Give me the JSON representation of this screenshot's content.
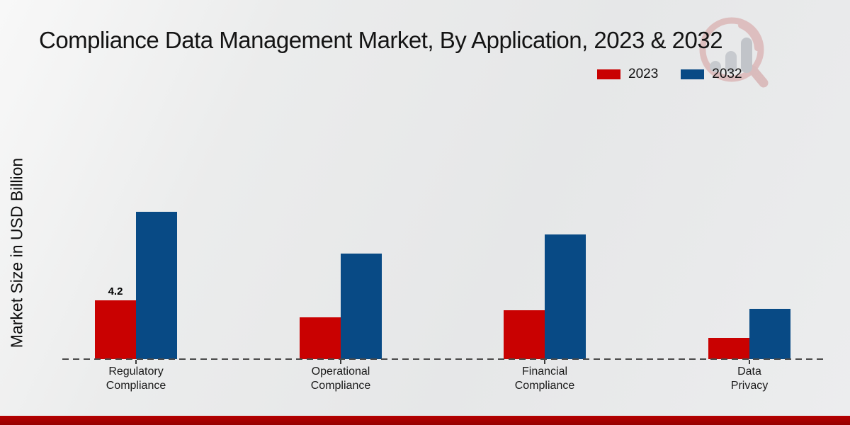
{
  "title": "Compliance Data Management Market, By Application, 2023 & 2032",
  "y_axis_label": "Market Size in USD Billion",
  "legend": {
    "items": [
      {
        "label": "2023",
        "color": "#c90101"
      },
      {
        "label": "2032",
        "color": "#084a85"
      }
    ]
  },
  "watermark_icon": "magnifier-bar-chart-logo",
  "footer_bar_color": "#b50000",
  "chart_data": {
    "type": "bar",
    "title": "Compliance Data Management Market, By Application, 2023 & 2032",
    "xlabel": "",
    "ylabel": "Market Size in USD Billion",
    "unit": "USD Billion",
    "categories": [
      "Regulatory Compliance",
      "Operational Compliance",
      "Financial Compliance",
      "Data Privacy"
    ],
    "categories_lines": [
      {
        "line1": "Regulatory",
        "line2": "Compliance"
      },
      {
        "line1": "Operational",
        "line2": "Compliance"
      },
      {
        "line1": "Financial",
        "line2": "Compliance"
      },
      {
        "line1": "Data",
        "line2": "Privacy"
      }
    ],
    "series": [
      {
        "name": "2023",
        "color": "#c90101",
        "values": [
          4.2,
          3.0,
          3.5,
          1.5
        ]
      },
      {
        "name": "2032",
        "color": "#084a85",
        "values": [
          10.5,
          7.5,
          8.9,
          3.6
        ]
      }
    ],
    "bar_labels": [
      {
        "series": "2023",
        "category": "Regulatory Compliance",
        "text": "4.2"
      }
    ],
    "ylim": [
      0,
      12
    ],
    "grid": false,
    "legend_position": "top-right",
    "baseline_style": "dashed"
  }
}
